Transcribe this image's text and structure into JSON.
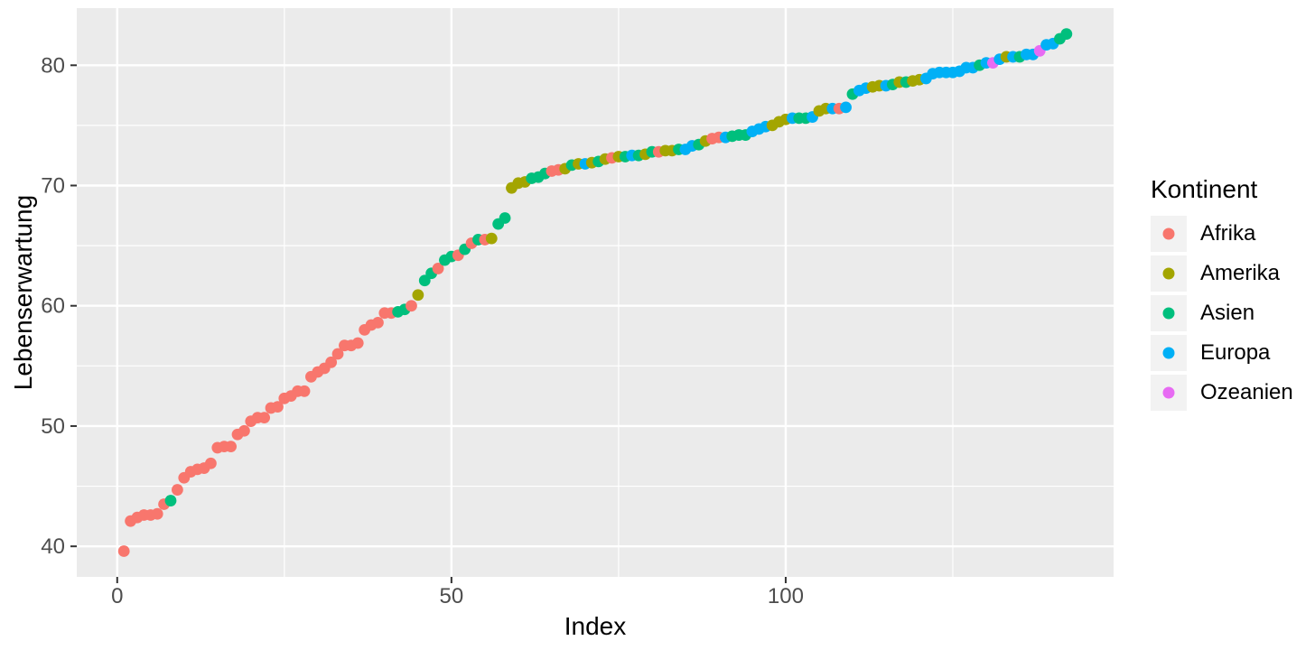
{
  "figure": {
    "background": "#FFFFFF",
    "panel_background": "#EBEBEB",
    "gridline_color": "#FFFFFF",
    "tick_mark_color": "#333333",
    "tick_label_color": "#4D4D4D",
    "axis_title_color": "#000000",
    "legend_key_fill": "#F2F2F2"
  },
  "chart_data": {
    "type": "scatter",
    "title": "",
    "xlabel": "Index",
    "ylabel": "Lebenserwartung",
    "xlim": [
      -6.05,
      149.05
    ],
    "ylim": [
      37.46,
      84.75
    ],
    "x_ticks": [
      0,
      50,
      100
    ],
    "x_minor_ticks": [
      25,
      75,
      125
    ],
    "y_ticks": [
      40,
      50,
      60,
      70,
      80
    ],
    "y_minor_ticks": [
      45,
      55,
      65,
      75
    ],
    "grid": true,
    "point_radius_px": 6.4,
    "legend": {
      "title": "Kontinent",
      "position": "right",
      "entries": [
        {
          "label": "Afrika",
          "color": "#F8766D"
        },
        {
          "label": "Amerika",
          "color": "#A3A500"
        },
        {
          "label": "Asien",
          "color": "#00BF7D"
        },
        {
          "label": "Europa",
          "color": "#00B0F6"
        },
        {
          "label": "Ozeanien",
          "color": "#E76BF3"
        }
      ]
    },
    "series_key": [
      "index",
      "lebenserwartung",
      "kontinent"
    ],
    "points": [
      [
        1,
        39.6,
        "Afrika"
      ],
      [
        2,
        42.1,
        "Afrika"
      ],
      [
        3,
        42.4,
        "Afrika"
      ],
      [
        4,
        42.6,
        "Afrika"
      ],
      [
        5,
        42.6,
        "Afrika"
      ],
      [
        6,
        42.7,
        "Afrika"
      ],
      [
        7,
        43.5,
        "Afrika"
      ],
      [
        8,
        43.8,
        "Asien"
      ],
      [
        9,
        44.7,
        "Afrika"
      ],
      [
        10,
        45.7,
        "Afrika"
      ],
      [
        11,
        46.2,
        "Afrika"
      ],
      [
        12,
        46.4,
        "Afrika"
      ],
      [
        13,
        46.5,
        "Afrika"
      ],
      [
        14,
        46.9,
        "Afrika"
      ],
      [
        15,
        48.2,
        "Afrika"
      ],
      [
        16,
        48.3,
        "Afrika"
      ],
      [
        17,
        48.3,
        "Afrika"
      ],
      [
        18,
        49.3,
        "Afrika"
      ],
      [
        19,
        49.6,
        "Afrika"
      ],
      [
        20,
        50.4,
        "Afrika"
      ],
      [
        21,
        50.7,
        "Afrika"
      ],
      [
        22,
        50.7,
        "Afrika"
      ],
      [
        23,
        51.5,
        "Afrika"
      ],
      [
        24,
        51.6,
        "Afrika"
      ],
      [
        25,
        52.3,
        "Afrika"
      ],
      [
        26,
        52.5,
        "Afrika"
      ],
      [
        27,
        52.9,
        "Afrika"
      ],
      [
        28,
        52.9,
        "Afrika"
      ],
      [
        29,
        54.1,
        "Afrika"
      ],
      [
        30,
        54.5,
        "Afrika"
      ],
      [
        31,
        54.8,
        "Afrika"
      ],
      [
        32,
        55.3,
        "Afrika"
      ],
      [
        33,
        56.0,
        "Afrika"
      ],
      [
        34,
        56.7,
        "Afrika"
      ],
      [
        35,
        56.7,
        "Afrika"
      ],
      [
        36,
        56.9,
        "Afrika"
      ],
      [
        37,
        58.0,
        "Afrika"
      ],
      [
        38,
        58.4,
        "Afrika"
      ],
      [
        39,
        58.6,
        "Afrika"
      ],
      [
        40,
        59.4,
        "Afrika"
      ],
      [
        41,
        59.4,
        "Afrika"
      ],
      [
        42,
        59.5,
        "Asien"
      ],
      [
        43,
        59.7,
        "Asien"
      ],
      [
        44,
        60.0,
        "Afrika"
      ],
      [
        45,
        60.9,
        "Amerika"
      ],
      [
        46,
        62.1,
        "Asien"
      ],
      [
        47,
        62.7,
        "Asien"
      ],
      [
        48,
        63.1,
        "Afrika"
      ],
      [
        49,
        63.8,
        "Asien"
      ],
      [
        50,
        64.1,
        "Asien"
      ],
      [
        51,
        64.2,
        "Afrika"
      ],
      [
        52,
        64.7,
        "Asien"
      ],
      [
        53,
        65.2,
        "Afrika"
      ],
      [
        54,
        65.5,
        "Asien"
      ],
      [
        55,
        65.5,
        "Afrika"
      ],
      [
        56,
        65.6,
        "Amerika"
      ],
      [
        57,
        66.8,
        "Asien"
      ],
      [
        58,
        67.3,
        "Asien"
      ],
      [
        59,
        69.8,
        "Amerika"
      ],
      [
        60,
        70.2,
        "Amerika"
      ],
      [
        61,
        70.3,
        "Amerika"
      ],
      [
        62,
        70.6,
        "Asien"
      ],
      [
        63,
        70.7,
        "Asien"
      ],
      [
        64,
        71.0,
        "Asien"
      ],
      [
        65,
        71.2,
        "Afrika"
      ],
      [
        66,
        71.3,
        "Afrika"
      ],
      [
        67,
        71.4,
        "Amerika"
      ],
      [
        68,
        71.7,
        "Asien"
      ],
      [
        69,
        71.8,
        "Amerika"
      ],
      [
        70,
        71.8,
        "Europa"
      ],
      [
        71,
        71.9,
        "Amerika"
      ],
      [
        72,
        72.0,
        "Asien"
      ],
      [
        73,
        72.2,
        "Amerika"
      ],
      [
        74,
        72.3,
        "Afrika"
      ],
      [
        75,
        72.4,
        "Amerika"
      ],
      [
        76,
        72.4,
        "Asien"
      ],
      [
        77,
        72.5,
        "Europa"
      ],
      [
        78,
        72.5,
        "Asien"
      ],
      [
        79,
        72.6,
        "Amerika"
      ],
      [
        80,
        72.8,
        "Asien"
      ],
      [
        81,
        72.8,
        "Afrika"
      ],
      [
        82,
        72.9,
        "Amerika"
      ],
      [
        83,
        72.9,
        "Amerika"
      ],
      [
        84,
        73.0,
        "Asien"
      ],
      [
        85,
        73.0,
        "Europa"
      ],
      [
        86,
        73.3,
        "Europa"
      ],
      [
        87,
        73.4,
        "Asien"
      ],
      [
        88,
        73.7,
        "Amerika"
      ],
      [
        89,
        73.9,
        "Afrika"
      ],
      [
        90,
        74.0,
        "Afrika"
      ],
      [
        91,
        74.0,
        "Europa"
      ],
      [
        92,
        74.1,
        "Asien"
      ],
      [
        93,
        74.2,
        "Asien"
      ],
      [
        94,
        74.2,
        "Asien"
      ],
      [
        95,
        74.5,
        "Europa"
      ],
      [
        96,
        74.7,
        "Europa"
      ],
      [
        97,
        74.9,
        "Europa"
      ],
      [
        98,
        75.0,
        "Amerika"
      ],
      [
        99,
        75.3,
        "Amerika"
      ],
      [
        100,
        75.5,
        "Amerika"
      ],
      [
        101,
        75.6,
        "Europa"
      ],
      [
        102,
        75.6,
        "Asien"
      ],
      [
        103,
        75.6,
        "Asien"
      ],
      [
        104,
        75.7,
        "Europa"
      ],
      [
        105,
        76.2,
        "Amerika"
      ],
      [
        106,
        76.4,
        "Amerika"
      ],
      [
        107,
        76.4,
        "Europa"
      ],
      [
        108,
        76.4,
        "Afrika"
      ],
      [
        109,
        76.5,
        "Europa"
      ],
      [
        110,
        77.6,
        "Asien"
      ],
      [
        111,
        77.9,
        "Europa"
      ],
      [
        112,
        78.1,
        "Europa"
      ],
      [
        113,
        78.2,
        "Amerika"
      ],
      [
        114,
        78.3,
        "Amerika"
      ],
      [
        115,
        78.3,
        "Europa"
      ],
      [
        116,
        78.4,
        "Asien"
      ],
      [
        117,
        78.6,
        "Amerika"
      ],
      [
        118,
        78.6,
        "Asien"
      ],
      [
        119,
        78.7,
        "Amerika"
      ],
      [
        120,
        78.8,
        "Amerika"
      ],
      [
        121,
        78.9,
        "Europa"
      ],
      [
        122,
        79.3,
        "Europa"
      ],
      [
        123,
        79.4,
        "Europa"
      ],
      [
        124,
        79.4,
        "Europa"
      ],
      [
        125,
        79.4,
        "Europa"
      ],
      [
        126,
        79.5,
        "Europa"
      ],
      [
        127,
        79.8,
        "Europa"
      ],
      [
        128,
        79.8,
        "Europa"
      ],
      [
        129,
        80.0,
        "Asien"
      ],
      [
        130,
        80.2,
        "Europa"
      ],
      [
        131,
        80.2,
        "Ozeanien"
      ],
      [
        132,
        80.5,
        "Europa"
      ],
      [
        133,
        80.7,
        "Amerika"
      ],
      [
        134,
        80.7,
        "Europa"
      ],
      [
        135,
        80.7,
        "Asien"
      ],
      [
        136,
        80.9,
        "Europa"
      ],
      [
        137,
        80.9,
        "Europa"
      ],
      [
        138,
        81.2,
        "Ozeanien"
      ],
      [
        139,
        81.7,
        "Europa"
      ],
      [
        140,
        81.8,
        "Europa"
      ],
      [
        141,
        82.2,
        "Asien"
      ],
      [
        142,
        82.6,
        "Asien"
      ]
    ]
  }
}
